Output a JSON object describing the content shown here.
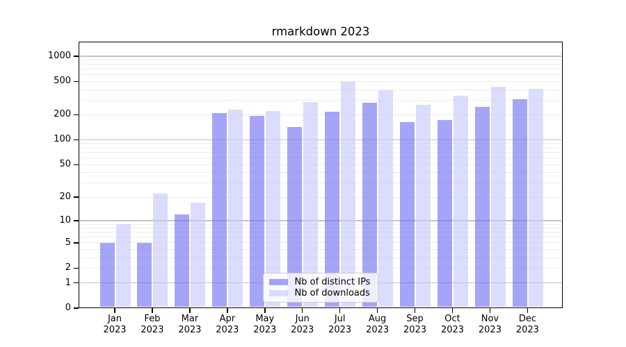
{
  "title": "rmarkdown 2023",
  "colors": {
    "ips_bar": "rgba(110,110,243,0.62)",
    "downloads_bar": "rgba(198,198,250,0.62)",
    "grid_major": "#c3c3c3",
    "grid_minor": "#ececec",
    "axis_color": "#000000",
    "legend_bg": "rgba(255,255,255,0.8)",
    "legend_border": "#cccccc"
  },
  "legend": {
    "items": [
      {
        "label": "Nb of distinct IPs",
        "color_key": "ips_bar"
      },
      {
        "label": "Nb of downloads",
        "color_key": "downloads_bar"
      }
    ]
  },
  "x_axis": {
    "months": [
      "Jan",
      "Feb",
      "Mar",
      "Apr",
      "May",
      "Jun",
      "Jul",
      "Aug",
      "Sep",
      "Oct",
      "Nov",
      "Dec"
    ],
    "year": "2023"
  },
  "y_axis": {
    "tick_labels": [
      "0",
      "1",
      "2",
      "5",
      "10",
      "20",
      "50",
      "100",
      "200",
      "500",
      "1000"
    ],
    "tick_values": [
      0,
      1,
      2,
      5,
      10,
      20,
      50,
      100,
      200,
      500,
      1000
    ]
  },
  "chart_data": {
    "type": "bar",
    "title": "rmarkdown 2023",
    "categories": [
      "Jan 2023",
      "Feb 2023",
      "Mar 2023",
      "Apr 2023",
      "May 2023",
      "Jun 2023",
      "Jul 2023",
      "Aug 2023",
      "Sep 2023",
      "Oct 2023",
      "Nov 2023",
      "Dec 2023"
    ],
    "series": [
      {
        "name": "Nb of distinct IPs",
        "values": [
          5,
          5,
          12,
          210,
          195,
          142,
          218,
          277,
          163,
          174,
          250,
          308
        ]
      },
      {
        "name": "Nb of downloads",
        "values": [
          9,
          22,
          17,
          232,
          221,
          282,
          490,
          393,
          263,
          335,
          432,
          406
        ]
      }
    ],
    "xlabel": "",
    "ylabel": "",
    "y_scale": "pseudo-log (position ~ log10(1+v))",
    "y_ticks": [
      0,
      1,
      2,
      5,
      10,
      20,
      50,
      100,
      200,
      500,
      1000
    ],
    "ylim": [
      0,
      1450
    ],
    "grid": "horizontal; major gridlines at 1,10,100,1000; minor at 2-9 multiples",
    "legend_position": "lower center"
  }
}
